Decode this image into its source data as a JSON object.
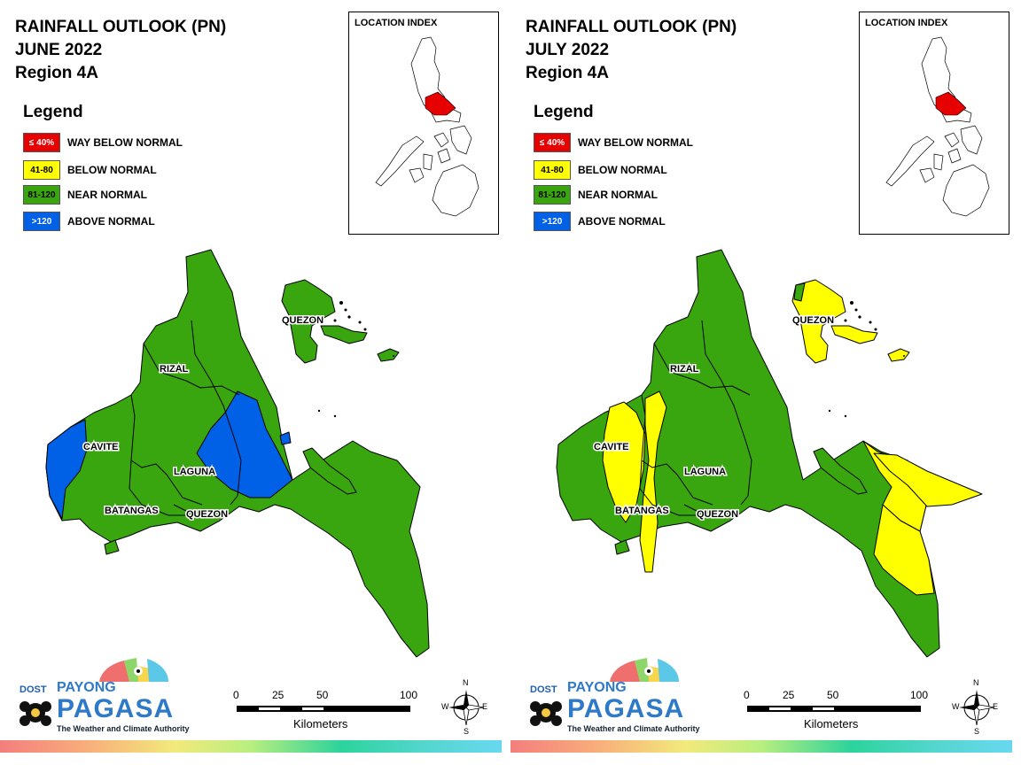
{
  "panels": [
    {
      "title_line1": "RAINFALL OUTLOOK (PN)",
      "title_line2": "JUNE 2022",
      "title_line3": "Region 4A",
      "legend": {
        "title": "Legend",
        "items": [
          {
            "range": "≤ 40%",
            "label": "WAY BELOW NORMAL",
            "color": "#e60000",
            "text_color": "#ffffff"
          },
          {
            "range": "41-80",
            "label": "BELOW NORMAL",
            "color": "#ffff00",
            "text_color": "#000000"
          },
          {
            "range": "81-120",
            "label": "NEAR NORMAL",
            "color": "#3aa60f",
            "text_color": "#000000"
          },
          {
            "range": ">120",
            "label": "ABOVE NORMAL",
            "color": "#0060e6",
            "text_color": "#ffffff"
          }
        ]
      },
      "location_index_title": "LOCATION INDEX",
      "map_labels": {
        "quezon_north": "QUEZON",
        "rizal": "RIZAL",
        "cavite": "CAVITE",
        "laguna": "LAGUNA",
        "batangas": "BATANGAS",
        "quezon_south": "QUEZON"
      },
      "scale": {
        "ticks": [
          "0",
          "25",
          "50",
          "100"
        ],
        "unit": "Kilometers"
      },
      "compass": {
        "n": "N",
        "s": "S",
        "e": "E",
        "w": "W"
      },
      "logo": {
        "dost": "DOST",
        "payong": "PAYONG",
        "pagasa": "PAGASA",
        "tagline": "The Weather and Climate Authority"
      }
    },
    {
      "title_line1": "RAINFALL OUTLOOK (PN)",
      "title_line2": "JULY 2022",
      "title_line3": "Region 4A",
      "legend": {
        "title": "Legend",
        "items": [
          {
            "range": "≤ 40%",
            "label": "WAY BELOW NORMAL",
            "color": "#e60000",
            "text_color": "#ffffff"
          },
          {
            "range": "41-80",
            "label": "BELOW NORMAL",
            "color": "#ffff00",
            "text_color": "#000000"
          },
          {
            "range": "81-120",
            "label": "NEAR NORMAL",
            "color": "#3aa60f",
            "text_color": "#000000"
          },
          {
            "range": ">120",
            "label": "ABOVE NORMAL",
            "color": "#0060e6",
            "text_color": "#ffffff"
          }
        ]
      },
      "location_index_title": "LOCATION INDEX",
      "map_labels": {
        "quezon_north": "QUEZON",
        "rizal": "RIZAL",
        "cavite": "CAVITE",
        "laguna": "LAGUNA",
        "batangas": "BATANGAS",
        "quezon_south": "QUEZON"
      },
      "scale": {
        "ticks": [
          "0",
          "25",
          "50",
          "100"
        ],
        "unit": "Kilometers"
      },
      "compass": {
        "n": "N",
        "s": "S",
        "e": "E",
        "w": "W"
      },
      "logo": {
        "dost": "DOST",
        "payong": "PAYONG",
        "pagasa": "PAGASA",
        "tagline": "The Weather and Climate Authority"
      }
    }
  ],
  "colors": {
    "near_normal": "#3aa60f",
    "above_normal": "#0060e6",
    "below_normal": "#ffff00",
    "highlight_region": "#e60000"
  }
}
